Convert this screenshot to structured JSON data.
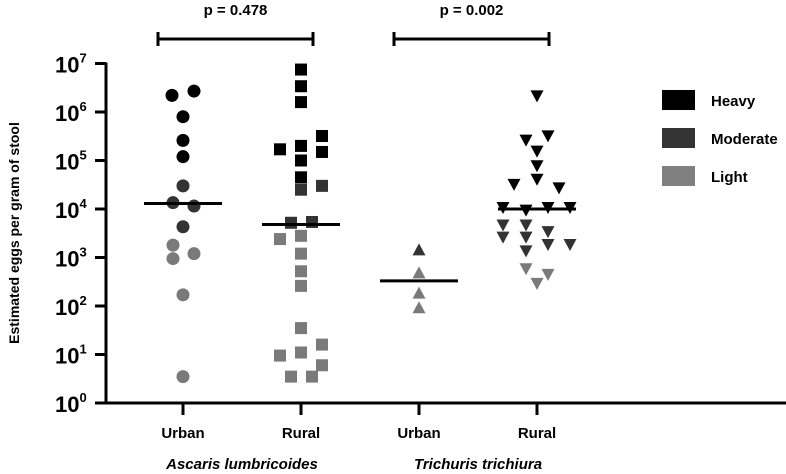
{
  "chart_data": {
    "type": "scatter",
    "title": "",
    "xlabel": "",
    "ylabel": "Estimated eggs per gram of stool",
    "yscale": "log",
    "ylim": [
      1,
      10000000
    ],
    "y_ticks": [
      {
        "base": "10",
        "exp": "0",
        "value": 1
      },
      {
        "base": "10",
        "exp": "1",
        "value": 10
      },
      {
        "base": "10",
        "exp": "2",
        "value": 100
      },
      {
        "base": "10",
        "exp": "3",
        "value": 1000
      },
      {
        "base": "10",
        "exp": "4",
        "value": 10000
      },
      {
        "base": "10",
        "exp": "5",
        "value": 100000
      },
      {
        "base": "10",
        "exp": "6",
        "value": 1000000
      },
      {
        "base": "10",
        "exp": "7",
        "value": 10000000
      }
    ],
    "grid": false,
    "legend_position": "right",
    "legend": [
      {
        "label": "Heavy",
        "color": "#000000"
      },
      {
        "label": "Moderate",
        "color": "#333333"
      },
      {
        "label": "Light",
        "color": "#808080"
      }
    ],
    "intensity_colors": {
      "heavy": "#000000",
      "moderate": "#333333",
      "light": "#7a7a7a"
    },
    "groups": [
      {
        "name": "Ascaris lumbricoides",
        "categories": [
          "Urban",
          "Rural"
        ],
        "comparison_p": "p = 0.478"
      },
      {
        "name": "Trichuris trichiura",
        "categories": [
          "Urban",
          "Rural"
        ],
        "comparison_p": "p = 0.002"
      }
    ],
    "series": [
      {
        "name": "Ascaris lumbricoides - Urban",
        "marker": "circle",
        "median": 13000,
        "points": [
          {
            "v": 2200000,
            "i": "heavy",
            "dx": -11
          },
          {
            "v": 2700000,
            "i": "heavy",
            "dx": 11
          },
          {
            "v": 800000,
            "i": "heavy",
            "dx": 0
          },
          {
            "v": 260000,
            "i": "heavy",
            "dx": 0
          },
          {
            "v": 120000,
            "i": "heavy",
            "dx": 0
          },
          {
            "v": 30000,
            "i": "moderate",
            "dx": 0
          },
          {
            "v": 13500,
            "i": "moderate",
            "dx": -10
          },
          {
            "v": 11500,
            "i": "moderate",
            "dx": 11
          },
          {
            "v": 4300,
            "i": "moderate",
            "dx": 0
          },
          {
            "v": 1800,
            "i": "light",
            "dx": -10
          },
          {
            "v": 1200,
            "i": "light",
            "dx": 11
          },
          {
            "v": 950,
            "i": "light",
            "dx": -10
          },
          {
            "v": 170,
            "i": "light",
            "dx": 0
          },
          {
            "v": 3.5,
            "i": "light",
            "dx": 0
          }
        ]
      },
      {
        "name": "Ascaris lumbricoides - Rural",
        "marker": "square",
        "median": 4800,
        "points": [
          {
            "v": 7500000,
            "i": "heavy",
            "dx": 0
          },
          {
            "v": 3400000,
            "i": "heavy",
            "dx": 0
          },
          {
            "v": 1600000,
            "i": "heavy",
            "dx": 0
          },
          {
            "v": 320000,
            "i": "heavy",
            "dx": 21
          },
          {
            "v": 150000,
            "i": "heavy",
            "dx": 21
          },
          {
            "v": 170000,
            "i": "heavy",
            "dx": -21
          },
          {
            "v": 200000,
            "i": "heavy",
            "dx": 0
          },
          {
            "v": 100000,
            "i": "heavy",
            "dx": 0
          },
          {
            "v": 45000,
            "i": "heavy",
            "dx": 0
          },
          {
            "v": 25000,
            "i": "moderate",
            "dx": 0
          },
          {
            "v": 30000,
            "i": "moderate",
            "dx": 21
          },
          {
            "v": 5200,
            "i": "moderate",
            "dx": -10
          },
          {
            "v": 5400,
            "i": "moderate",
            "dx": 11
          },
          {
            "v": 2400,
            "i": "light",
            "dx": -21
          },
          {
            "v": 2800,
            "i": "light",
            "dx": 0
          },
          {
            "v": 1200,
            "i": "light",
            "dx": 0
          },
          {
            "v": 520,
            "i": "light",
            "dx": 0
          },
          {
            "v": 260,
            "i": "light",
            "dx": 0
          },
          {
            "v": 35,
            "i": "light",
            "dx": 0
          },
          {
            "v": 16,
            "i": "light",
            "dx": 21
          },
          {
            "v": 9.5,
            "i": "light",
            "dx": -21
          },
          {
            "v": 11,
            "i": "light",
            "dx": 0
          },
          {
            "v": 6,
            "i": "light",
            "dx": 21
          },
          {
            "v": 3.5,
            "i": "light",
            "dx": -10
          },
          {
            "v": 3.5,
            "i": "light",
            "dx": 11
          }
        ]
      },
      {
        "name": "Trichuris trichiura - Urban",
        "marker": "triangle-up",
        "median": 330,
        "points": [
          {
            "v": 1400,
            "i": "moderate",
            "dx": 0
          },
          {
            "v": 470,
            "i": "light",
            "dx": 0
          },
          {
            "v": 180,
            "i": "light",
            "dx": 0
          },
          {
            "v": 90,
            "i": "light",
            "dx": 0
          }
        ]
      },
      {
        "name": "Trichuris trichiura - Rural",
        "marker": "triangle-down",
        "median": 10000,
        "points": [
          {
            "v": 2200000,
            "i": "heavy",
            "dx": 0
          },
          {
            "v": 270000,
            "i": "heavy",
            "dx": -11
          },
          {
            "v": 330000,
            "i": "heavy",
            "dx": 11
          },
          {
            "v": 160000,
            "i": "heavy",
            "dx": 0
          },
          {
            "v": 80000,
            "i": "heavy",
            "dx": 0
          },
          {
            "v": 33000,
            "i": "heavy",
            "dx": -23
          },
          {
            "v": 42000,
            "i": "heavy",
            "dx": 0
          },
          {
            "v": 28000,
            "i": "heavy",
            "dx": 22
          },
          {
            "v": 11000,
            "i": "heavy",
            "dx": -34
          },
          {
            "v": 9700,
            "i": "heavy",
            "dx": -11
          },
          {
            "v": 11000,
            "i": "heavy",
            "dx": 11
          },
          {
            "v": 11000,
            "i": "heavy",
            "dx": 33
          },
          {
            "v": 4800,
            "i": "moderate",
            "dx": -34
          },
          {
            "v": 4800,
            "i": "moderate",
            "dx": -11
          },
          {
            "v": 2700,
            "i": "moderate",
            "dx": -34
          },
          {
            "v": 2700,
            "i": "moderate",
            "dx": -11
          },
          {
            "v": 3500,
            "i": "moderate",
            "dx": 11
          },
          {
            "v": 1400,
            "i": "moderate",
            "dx": -11
          },
          {
            "v": 1900,
            "i": "moderate",
            "dx": 11
          },
          {
            "v": 1900,
            "i": "moderate",
            "dx": 33
          },
          {
            "v": 600,
            "i": "light",
            "dx": -11
          },
          {
            "v": 460,
            "i": "light",
            "dx": 11
          },
          {
            "v": 300,
            "i": "light",
            "dx": 0
          }
        ]
      }
    ]
  }
}
